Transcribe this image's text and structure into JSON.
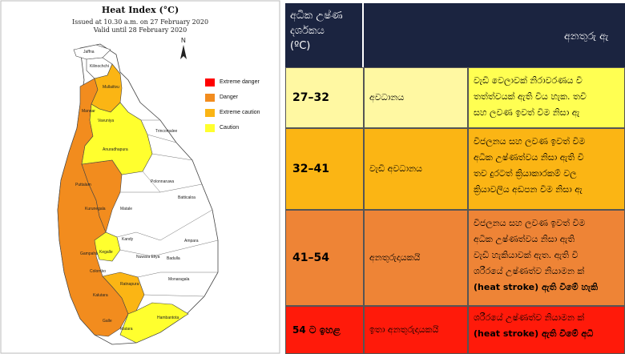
{
  "map": {
    "title": "Heat Index (°C)",
    "issued": "Issued at 10.30 a.m. on 27 February 2020",
    "valid": "Valid until 28 February 2020",
    "north": "N",
    "legend": [
      {
        "label": "Extreme danger",
        "color": "#ff0000"
      },
      {
        "label": "Danger",
        "color": "#f28c1e"
      },
      {
        "label": "Extreme caution",
        "color": "#fbb514"
      },
      {
        "label": "Caution",
        "color": "#ffff2e"
      }
    ],
    "districts": [
      "Jaffna",
      "Kilinochchi",
      "Mullaitivu",
      "Mannar",
      "Vavuniya",
      "Trincomalee",
      "Anuradhapura",
      "Polonnaruwa",
      "Puttalam",
      "Batticaloa",
      "Kurunegala",
      "Matale",
      "Kandy",
      "Ampara",
      "Gampaha",
      "Kegalle",
      "Nuwara Eliya",
      "Badulla",
      "Colombo",
      "Kalutara",
      "Ratnapura",
      "Monaragala",
      "Galle",
      "Matara",
      "Hambantota"
    ]
  },
  "table": {
    "header_col1": [
      "අධික උෂ්ණ",
      "දර්ශකය",
      "(ºC)"
    ],
    "header_col2": "අනතුරු ඇ",
    "rows": [
      {
        "range": "27–32",
        "level": "අවධානය",
        "effect": [
          "වැඩි වෙලාවක් නිරාවරණය වී",
          "තත්ත්වයක් ඇති විය හැක. තවි",
          "සහ ලවණ ඉවත් වීම නිසා ඇ"
        ]
      },
      {
        "range": "32–41",
        "level": "වැඩි අවධානය",
        "effect": [
          "විජලනය සහ ලවණ ඉවත් වීම",
          "අධික උෂ්ණත්වය නිසා ඇති වි",
          "තව දුරටත් ක්‍රියාකාරකම් වල",
          "ක්‍රියාවලිය අඩපන වීම නිසා ඇ"
        ]
      },
      {
        "range": "41–54",
        "level": "අනතුරුදායකයි",
        "effect": [
          "විජලනය සහ ලවණ ඉවත් වීම",
          "අධික උෂ්ණත්වය නිසා ඇති",
          "වැඩි හැකියාවක් ඇත. ඇති වි",
          "ශරීරයේ උෂ්ණත්ව නියාමන ක්‍",
          "(heat stroke) ඇති වීමේ හැකි"
        ]
      },
      {
        "range": "54 ට ඉහළ",
        "level": "ඉතා අනතුරුදායකයි",
        "effect": [
          "ශරීරයේ උෂ්ණත්ව නියාමන ක්‍",
          "(heat stroke) ඇති වීමේ අධි"
        ]
      }
    ]
  }
}
